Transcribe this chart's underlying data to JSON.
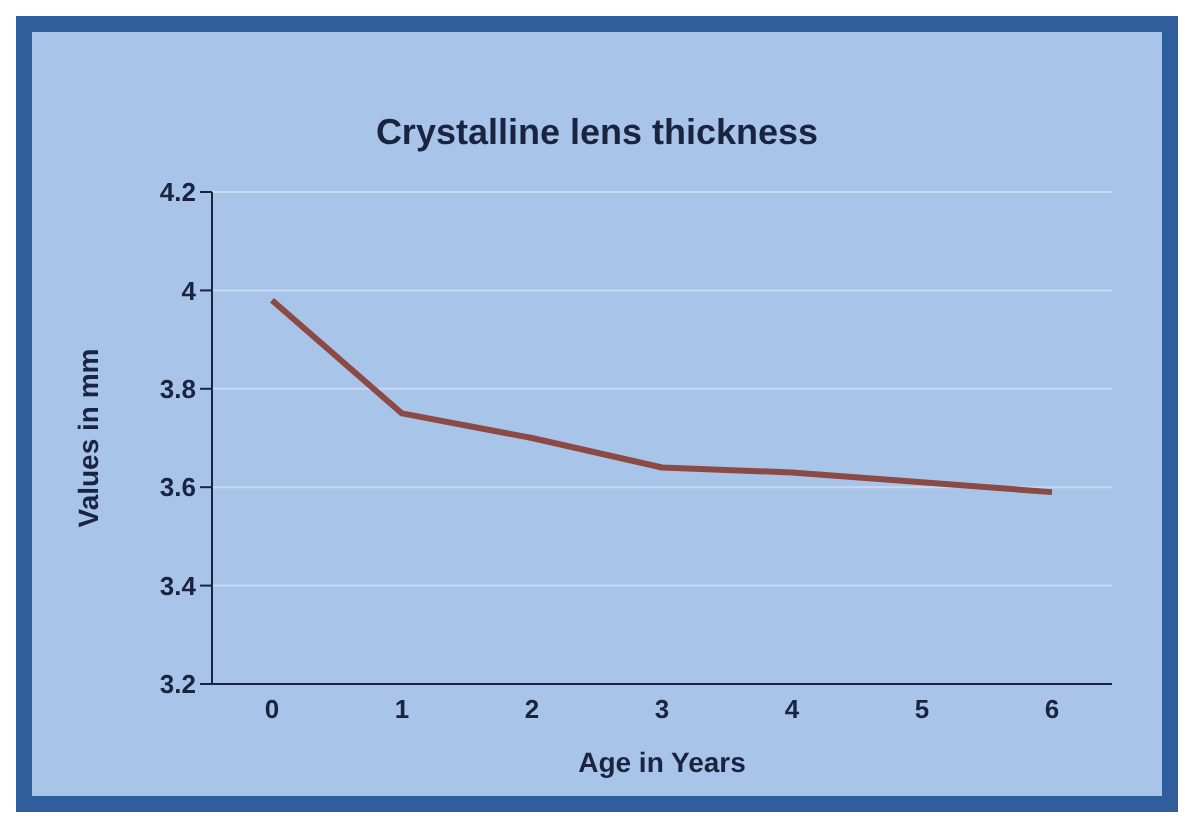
{
  "chart_data": {
    "type": "line",
    "title": "Crystalline lens thickness",
    "xlabel": "Age in Years",
    "ylabel": "Values in mm",
    "categories": [
      "0",
      "1",
      "2",
      "3",
      "4",
      "5",
      "6"
    ],
    "series": [
      {
        "color": "#8c4a44",
        "values": [
          3.98,
          3.75,
          3.7,
          3.64,
          3.63,
          3.61,
          3.59
        ]
      }
    ],
    "ylim": [
      3.2,
      4.2
    ],
    "yticks": [
      3.2,
      3.4,
      3.6,
      3.8,
      4,
      4.2
    ],
    "grid": "y",
    "legend": false,
    "marker": "none",
    "line_style": "solid"
  }
}
